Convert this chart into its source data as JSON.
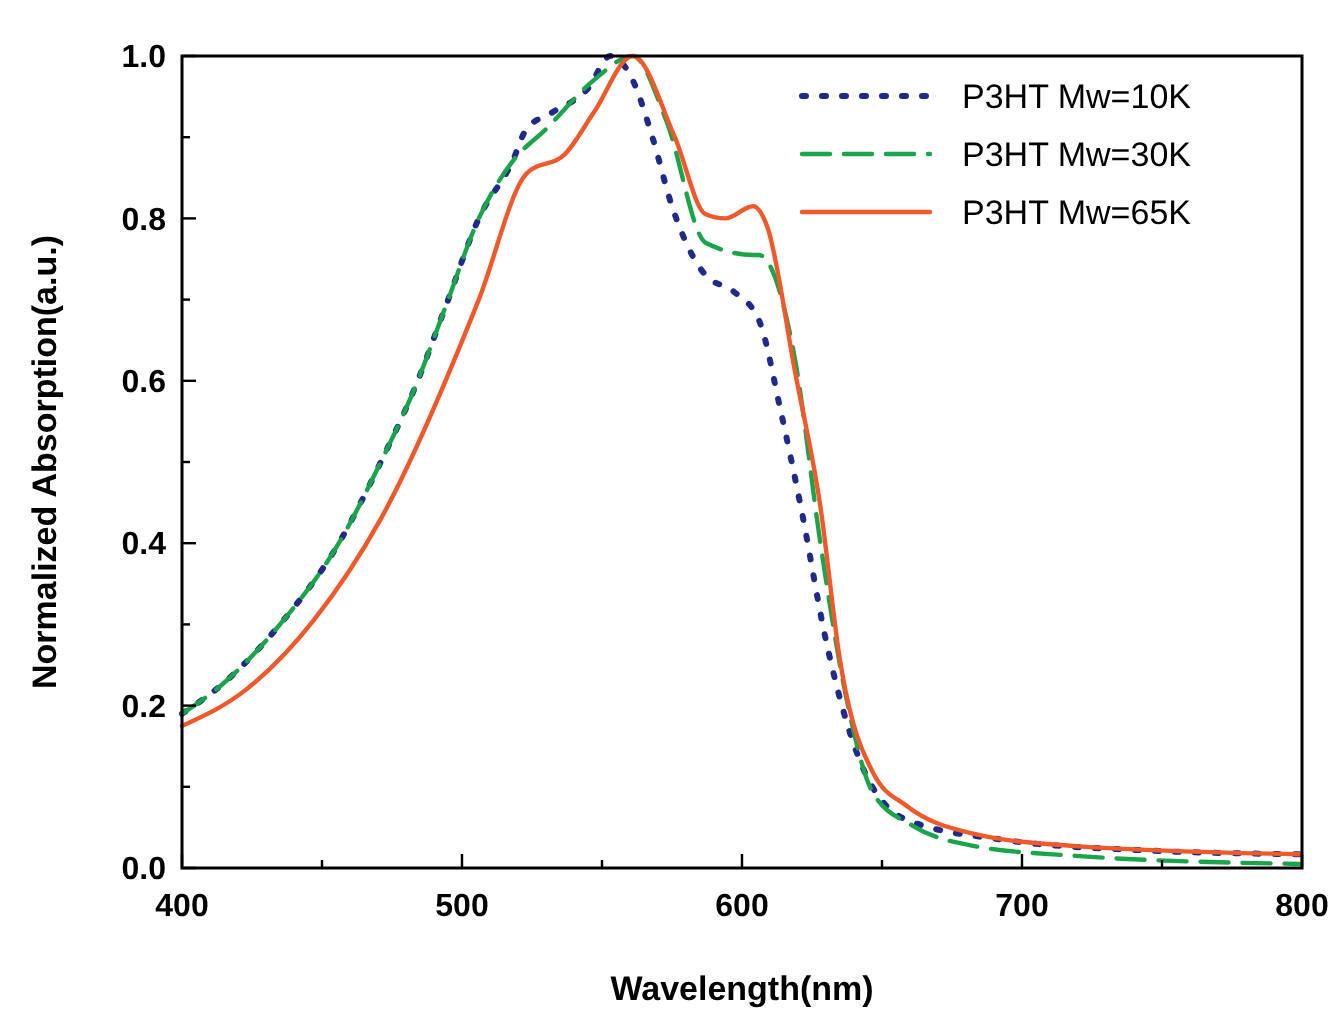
{
  "chart_data": {
    "type": "line",
    "xlabel": "Wavelength(nm)",
    "ylabel": "Normalized Absorption(a.u.)",
    "xlim": [
      400,
      800
    ],
    "ylim": [
      0,
      1
    ],
    "xticks": [
      400,
      {
        "value": 450,
        "label": null
      },
      500,
      {
        "value": 550,
        "label": null
      },
      600,
      {
        "value": 650,
        "label": null
      },
      700,
      {
        "value": 750,
        "label": null
      },
      800
    ],
    "yticks": [
      {
        "value": 0,
        "label": "0.0"
      },
      {
        "value": 0.1,
        "label": null
      },
      0.2,
      {
        "value": 0.3,
        "label": null
      },
      0.4,
      {
        "value": 0.5,
        "label": null
      },
      0.6,
      {
        "value": 0.7,
        "label": null
      },
      0.8,
      {
        "value": 0.9,
        "label": null
      },
      {
        "value": 1,
        "label": "1.0"
      }
    ],
    "legend": "top right",
    "grid": false,
    "series": [
      {
        "name": "P3HT Mw=10K",
        "color": "#1f2a8c",
        "line_style": "dotted",
        "x": [
          400,
          414,
          435,
          456,
          471,
          483,
          494,
          506,
          518,
          523,
          532,
          545,
          553,
          561,
          568,
          575,
          587,
          597,
          606,
          614,
          621,
          630,
          642,
          659,
          695,
          742,
          799
        ],
        "values": [
          0.19,
          0.225,
          0.3,
          0.4,
          0.5,
          0.59,
          0.69,
          0.8,
          0.87,
          0.91,
          0.93,
          0.96,
          1.0,
          0.97,
          0.9,
          0.815,
          0.73,
          0.71,
          0.675,
          0.56,
          0.445,
          0.28,
          0.133,
          0.059,
          0.034,
          0.022,
          0.017
        ]
      },
      {
        "name": "P3HT Mw=30K",
        "color": "#1aa54a",
        "line_style": "dashed",
        "x": [
          400,
          414,
          435,
          456,
          471,
          483,
          494,
          506,
          518,
          530,
          547,
          561,
          573,
          587,
          604,
          606,
          619,
          628,
          637,
          647,
          661,
          683,
          719,
          799
        ],
        "values": [
          0.19,
          0.225,
          0.3,
          0.4,
          0.5,
          0.59,
          0.69,
          0.8,
          0.87,
          0.91,
          0.97,
          1.0,
          0.92,
          0.77,
          0.755,
          0.755,
          0.625,
          0.4,
          0.214,
          0.091,
          0.052,
          0.027,
          0.015,
          0.005
        ]
      },
      {
        "name": "P3HT Mw=65K",
        "color": "#f0592a",
        "line_style": "solid",
        "x": [
          400,
          423,
          447,
          471,
          506,
          523,
          537,
          547,
          561,
          576,
          587,
          594,
          604,
          609,
          619,
          628,
          635,
          647,
          659,
          683,
          719,
          799
        ],
        "values": [
          0.175,
          0.22,
          0.305,
          0.43,
          0.7,
          0.855,
          0.88,
          0.93,
          1.0,
          0.9,
          0.805,
          0.8,
          0.815,
          0.79,
          0.61,
          0.445,
          0.256,
          0.116,
          0.076,
          0.042,
          0.027,
          0.017
        ]
      }
    ]
  }
}
